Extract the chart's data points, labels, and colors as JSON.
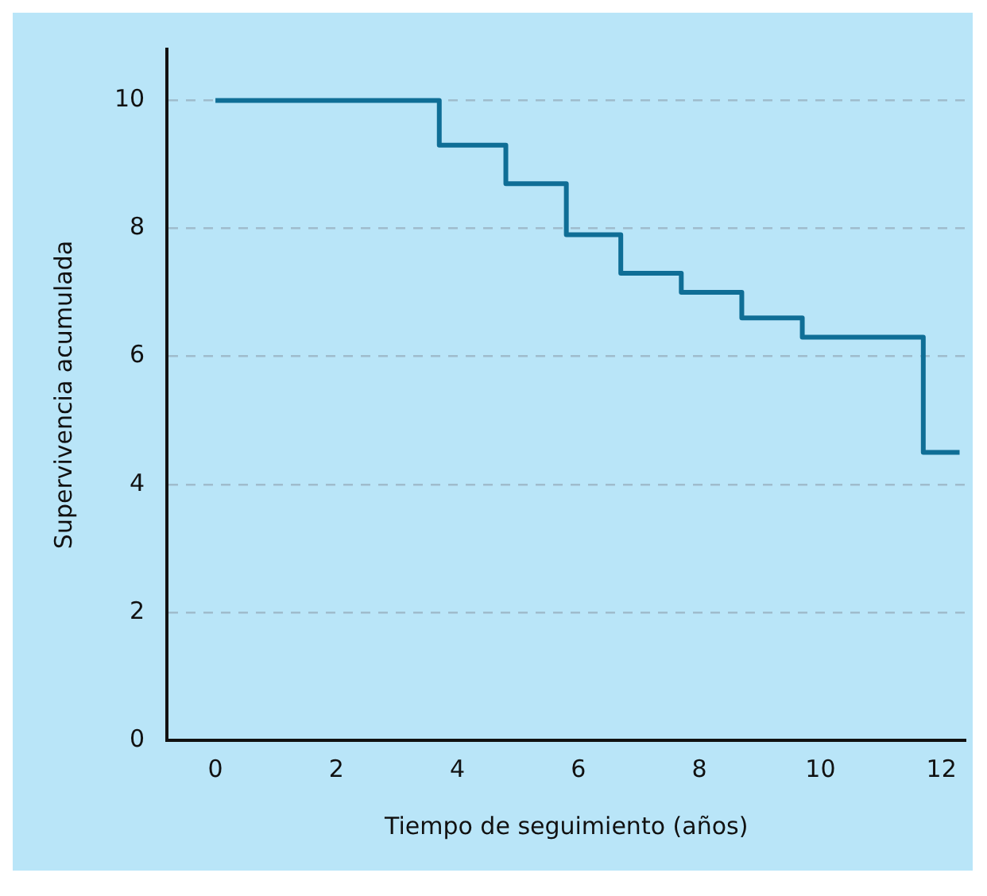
{
  "chart_data": {
    "type": "step",
    "xlabel": "Tiempo de seguimiento (años)",
    "ylabel": "Supervivencia acumulada",
    "x": [
      0,
      3.7,
      4.8,
      5.8,
      6.7,
      7.7,
      8.7,
      9.7,
      11.7,
      12.3
    ],
    "series": [
      {
        "color": "#0f6e96",
        "values": [
          10,
          9.3,
          8.7,
          7.9,
          7.3,
          7.0,
          6.6,
          6.3,
          4.5,
          4.5
        ]
      }
    ],
    "xlim": [
      -0.8,
      12.4
    ],
    "xticks": [
      0,
      2,
      4,
      6,
      8,
      10,
      12
    ],
    "ylim": [
      0,
      10.8
    ],
    "yticks": [
      0,
      2,
      4,
      6,
      8,
      10
    ],
    "grid": "y",
    "legend": false,
    "marker": "none",
    "line_style": "solid"
  }
}
